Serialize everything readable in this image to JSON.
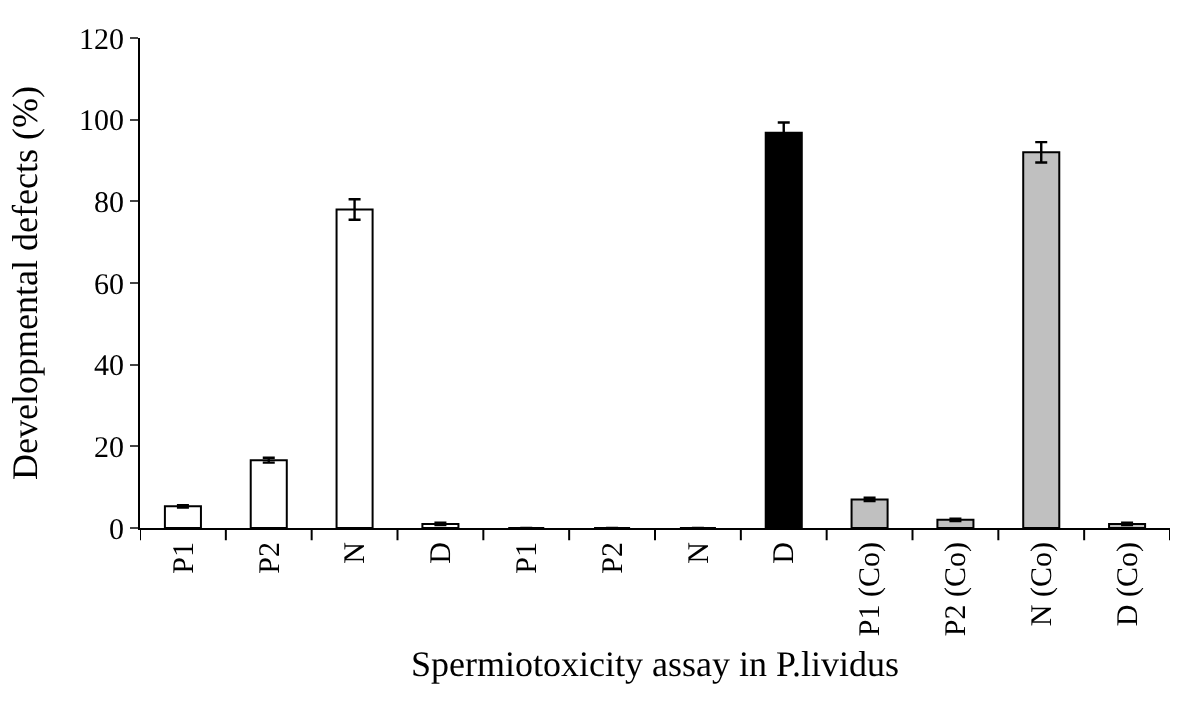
{
  "chart_data": {
    "type": "bar",
    "categories": [
      "P1",
      "P2",
      "N",
      "D",
      "P1",
      "P2",
      "N",
      "D",
      "P1 (Co)",
      "P2 (Co)",
      "N (Co)",
      "D (Co)"
    ],
    "values": [
      5.3,
      16.6,
      78,
      1,
      0,
      0,
      0,
      96.8,
      7,
      2,
      92,
      1
    ],
    "errors": [
      0.3,
      0.6,
      2.5,
      0.3,
      null,
      null,
      null,
      2.5,
      0.4,
      0.3,
      2.5,
      0.3
    ],
    "colors": [
      "#ffffff",
      "#ffffff",
      "#ffffff",
      "#ffffff",
      "#ffffff",
      "#ffffff",
      "#ffffff",
      "#000000",
      "#c0c0c0",
      "#c0c0c0",
      "#c0c0c0",
      "#c0c0c0"
    ],
    "ylabel": "Developmental defects (%)",
    "xlabel": "Spermiotoxicity assay in P.lividus",
    "ylim": [
      0,
      120
    ],
    "yticks": [
      0,
      20,
      40,
      60,
      80,
      100,
      120
    ]
  }
}
